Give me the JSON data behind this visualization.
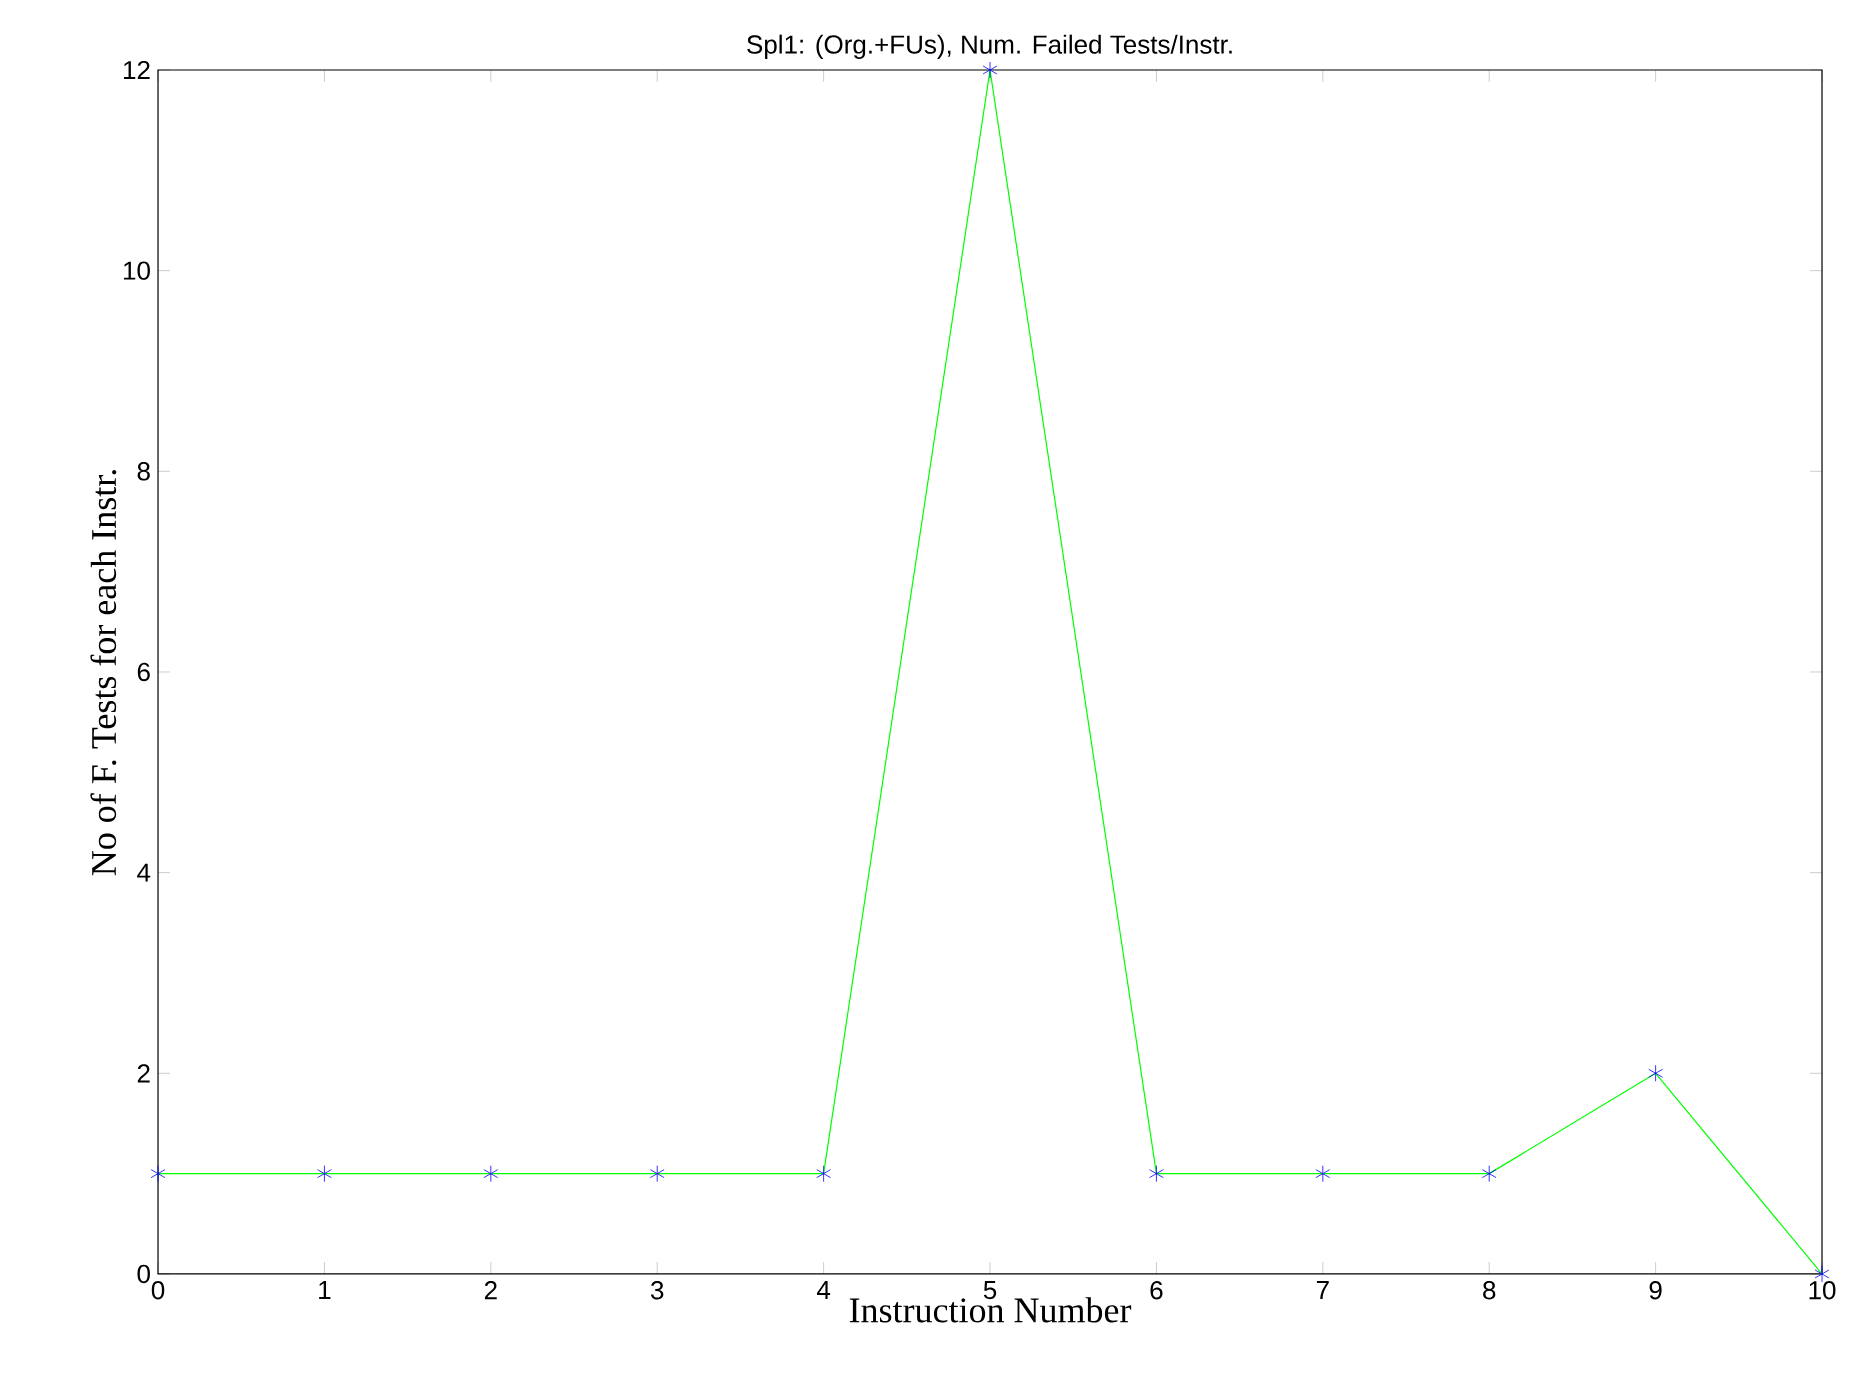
{
  "chart_data": {
    "type": "line",
    "title": "Spl1: (Org.+FUs), Num. Failed Tests/Instr.",
    "xlabel": "Instruction Number",
    "ylabel": "No of  F. Tests  for  each  Instr.",
    "x": [
      0,
      1,
      2,
      3,
      4,
      5,
      6,
      7,
      8,
      9,
      10
    ],
    "series": [
      {
        "color": "#00ff00",
        "colors": [
          "#0000ff",
          "#0000ff",
          "#0000ff",
          "#0000ff",
          "#0000ff",
          "#0000ff",
          "#0000ff",
          "#0000ff",
          "#0000ff",
          "#0000ff",
          "#0000ff"
        ],
        "values": [
          1,
          1,
          1,
          1,
          1,
          12,
          1,
          1,
          1,
          2,
          0
        ]
      }
    ],
    "xlim": [
      0,
      10
    ],
    "ylim": [
      0,
      12
    ],
    "xticks": [
      0,
      1,
      2,
      3,
      4,
      5,
      6,
      7,
      8,
      9,
      10
    ],
    "yticks": [
      0,
      2,
      4,
      6,
      8,
      10,
      12
    ],
    "marker": "cross",
    "line_style": "solid"
  }
}
